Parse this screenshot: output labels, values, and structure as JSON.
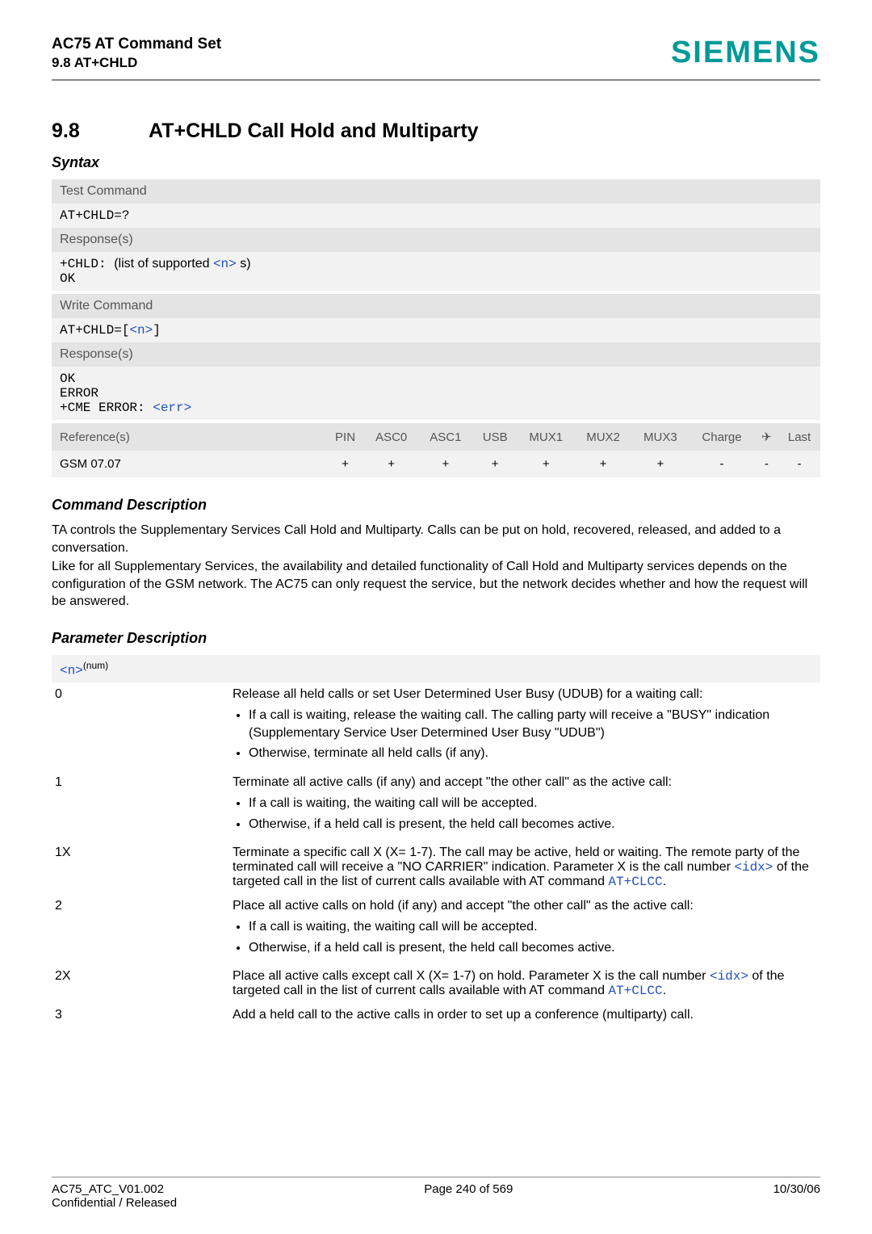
{
  "header": {
    "product": "AC75 AT Command Set",
    "section_ref": "9.8 AT+CHLD",
    "logo": "SIEMENS",
    "logo_color": "#009999"
  },
  "section": {
    "number": "9.8",
    "title": "AT+CHLD   Call Hold and Multiparty"
  },
  "syntax": {
    "heading": "Syntax",
    "test_command": {
      "label": "Test Command",
      "command": "AT+CHLD=?",
      "response_label": "Response(s)",
      "response_line1_prefix": "+CHLD: ",
      "response_line1_mid": "(list of supported ",
      "response_line1_n": "<n>",
      "response_line1_suffix": "s)",
      "response_line2": "OK"
    },
    "write_command": {
      "label": "Write Command",
      "cmd_prefix": "AT+CHLD=[",
      "cmd_n": "<n>",
      "cmd_suffix": "]",
      "response_label": "Response(s)",
      "resp_l1": "OK",
      "resp_l2": "ERROR",
      "resp_l3_prefix": "+CME ERROR: ",
      "resp_l3_err": "<err>"
    }
  },
  "reference": {
    "head": {
      "c0": "Reference(s)",
      "c1": "PIN",
      "c2": "ASC0",
      "c3": "ASC1",
      "c4": "USB",
      "c5": "MUX1",
      "c6": "MUX2",
      "c7": "MUX3",
      "c8": "Charge",
      "c9": "✈",
      "c10": "Last"
    },
    "row": {
      "c0": "GSM 07.07",
      "c1": "+",
      "c2": "+",
      "c3": "+",
      "c4": "+",
      "c5": "+",
      "c6": "+",
      "c7": "+",
      "c8": "-",
      "c9": "-",
      "c10": "-"
    }
  },
  "command_desc": {
    "heading": "Command Description",
    "p1": "TA controls the Supplementary Services Call Hold and Multiparty. Calls can be put on hold, recovered, released, and added to a conversation.",
    "p2": "Like for all Supplementary Services, the availability and detailed functionality of Call Hold and Multiparty services depends on the configuration of the GSM network. The AC75 can only request the service, but the network decides whether and how the request will be answered."
  },
  "param": {
    "heading": "Parameter Description",
    "n_token": "<n>",
    "n_sup": "(num)",
    "rows": {
      "r0": {
        "key": "0",
        "lead": "Release all held calls or set User Determined User Busy (UDUB) for a waiting call:",
        "b1": "If a call is waiting, release the waiting call. The calling party will receive a \"BUSY\" indication (Supplementary Service User Determined User Busy \"UDUB\")",
        "b2": "Otherwise, terminate all held calls (if any)."
      },
      "r1": {
        "key": "1",
        "lead": "Terminate all active calls (if any) and accept \"the other call\" as the active call:",
        "b1": "If a call is waiting, the waiting call will be accepted.",
        "b2": "Otherwise, if a held call is present, the held call becomes active."
      },
      "r1X": {
        "key": "1X",
        "t1": "Terminate a specific call X (X= 1-7). The call may be active, held or waiting. The remote party of the terminated call will receive a \"NO CARRIER\" indication. Parameter X is the call number ",
        "idx": "<idx>",
        "t2": " of the targeted call in the list of current calls available with AT command ",
        "cmd": "AT+CLCC",
        "t3": "."
      },
      "r2": {
        "key": "2",
        "lead": "Place all active calls on hold (if any) and accept \"the other call\" as the active call:",
        "b1": "If a call is waiting, the waiting call will be accepted.",
        "b2": "Otherwise, if a held call is present, the held call becomes active."
      },
      "r2X": {
        "key": "2X",
        "t1": "Place all active calls except call X (X= 1-7) on hold. Parameter X is the call number ",
        "idx": "<idx>",
        "t2": " of the targeted call in the list of current calls available with AT command ",
        "cmd": "AT+CLCC",
        "t3": "."
      },
      "r3": {
        "key": "3",
        "lead": "Add a held call to the active calls in order to set up a conference (multiparty) call."
      }
    }
  },
  "footer": {
    "l1_left": "AC75_ATC_V01.002",
    "l1_mid": "Page 240 of 569",
    "l1_right": "10/30/06",
    "l2_left": "Confidential / Released"
  }
}
